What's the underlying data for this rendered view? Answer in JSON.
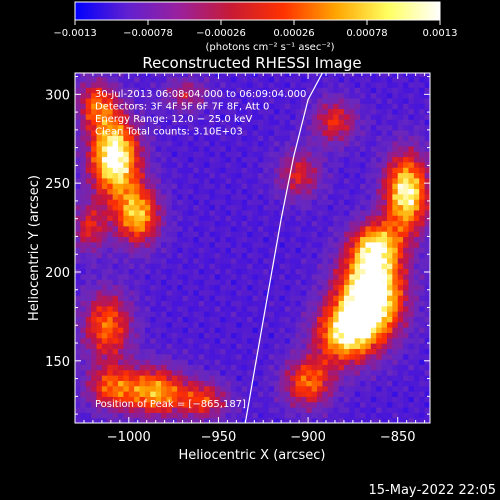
{
  "chart_data": {
    "type": "heatmap",
    "title": "Reconstructed RHESSI Image",
    "xlabel": "Heliocentric X (arcsec)",
    "ylabel": "Heliocentric Y (arcsec)",
    "xlim": [
      -1030,
      -832
    ],
    "ylim": [
      115,
      312
    ],
    "x_ticks": [
      -1000,
      -950,
      -900,
      -850
    ],
    "x_tick_labels": [
      "−1000",
      "−950",
      "−900",
      "−850"
    ],
    "y_ticks": [
      150,
      200,
      250,
      300
    ],
    "y_tick_labels": [
      "150",
      "200",
      "250",
      "300"
    ],
    "colorbar": {
      "range": [
        -0.0013,
        0.0013
      ],
      "tick_labels": [
        "−0.0013",
        "−0.00078",
        "−0.00026",
        "0.00026",
        "0.00078",
        "0.0013"
      ],
      "units": "(photons cm⁻² s⁻¹ asec⁻²)",
      "colors": [
        "#0000ff",
        "#6020d0",
        "#9a209c",
        "#c81a34",
        "#ff3200",
        "#ffa400",
        "#ffff60",
        "#ffffff"
      ]
    },
    "info_lines": [
      "30‑Jul‑2013 06:08:04.000 to 06:09:04.000",
      "Detectors: 3F 4F 5F 6F 7F 8F, Att 0",
      "Energy Range: 12.0 − 25.0 keV",
      "Clean    Total counts: 3.10E+03"
    ],
    "peak_label": "Position of Peak = [−865,187]",
    "peak_position": [
      -865,
      187
    ],
    "limb_curve": {
      "x": [
        -935,
        -929,
        -922,
        -915,
        -908,
        -900,
        -892
      ],
      "y": [
        115,
        150,
        190,
        230,
        265,
        297,
        312
      ]
    },
    "emission_sources": [
      {
        "x": -1008,
        "y": 265,
        "sx": 10,
        "sy": 16,
        "amp": 1.15
      },
      {
        "x": -995,
        "y": 232,
        "sx": 9,
        "sy": 12,
        "amp": 0.85
      },
      {
        "x": -1018,
        "y": 295,
        "sx": 8,
        "sy": 10,
        "amp": 0.6
      },
      {
        "x": -1012,
        "y": 170,
        "sx": 10,
        "sy": 14,
        "amp": 0.7
      },
      {
        "x": -985,
        "y": 133,
        "sx": 12,
        "sy": 10,
        "amp": 0.8
      },
      {
        "x": -1010,
        "y": 135,
        "sx": 10,
        "sy": 9,
        "amp": 0.6
      },
      {
        "x": -958,
        "y": 128,
        "sx": 10,
        "sy": 8,
        "amp": 0.55
      },
      {
        "x": -865,
        "y": 187,
        "sx": 13,
        "sy": 17,
        "amp": 1.3
      },
      {
        "x": -845,
        "y": 245,
        "sx": 9,
        "sy": 16,
        "amp": 1.05
      },
      {
        "x": -880,
        "y": 165,
        "sx": 12,
        "sy": 12,
        "amp": 0.85
      },
      {
        "x": -862,
        "y": 215,
        "sx": 10,
        "sy": 10,
        "amp": 0.75
      },
      {
        "x": -900,
        "y": 138,
        "sx": 10,
        "sy": 10,
        "amp": 0.7
      },
      {
        "x": -905,
        "y": 255,
        "sx": 9,
        "sy": 10,
        "amp": 0.5
      },
      {
        "x": -885,
        "y": 285,
        "sx": 9,
        "sy": 9,
        "amp": 0.55
      },
      {
        "x": -1022,
        "y": 225,
        "sx": 7,
        "sy": 10,
        "amp": 0.5
      },
      {
        "x": -968,
        "y": 300,
        "sx": 9,
        "sy": 7,
        "amp": 0.4
      }
    ]
  },
  "footer": {
    "timestamp": "15‑May‑2022 22:05"
  }
}
